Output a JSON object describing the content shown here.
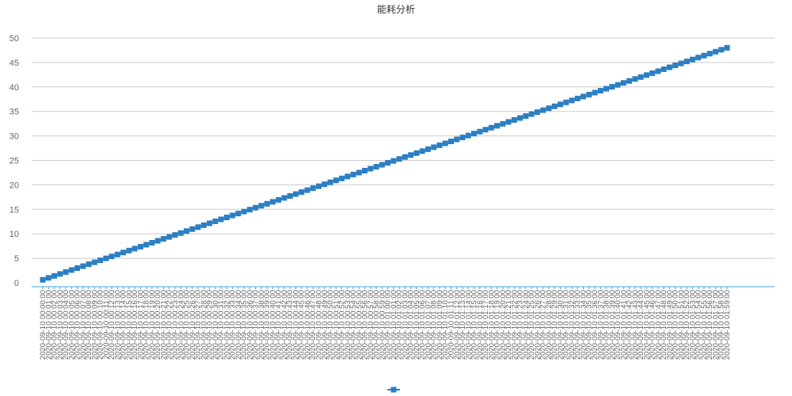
{
  "chart_data": {
    "type": "line",
    "title": "能耗分析",
    "xlabel": "",
    "ylabel": "",
    "ylim": [
      0,
      50
    ],
    "yticks": [
      0,
      5,
      10,
      15,
      20,
      25,
      30,
      35,
      40,
      45,
      50
    ],
    "x_start": "2020-09-10 00:00:00",
    "x_end": "2020-09-10 01:59:00",
    "x_step_minutes": 1,
    "x_label_every_minutes": 1,
    "grid": true,
    "legend": "bottom",
    "series": [
      {
        "name": "",
        "color": "#2b7fc2",
        "marker": "square",
        "y_start": 0.6,
        "y_end": 48.0
      }
    ]
  }
}
